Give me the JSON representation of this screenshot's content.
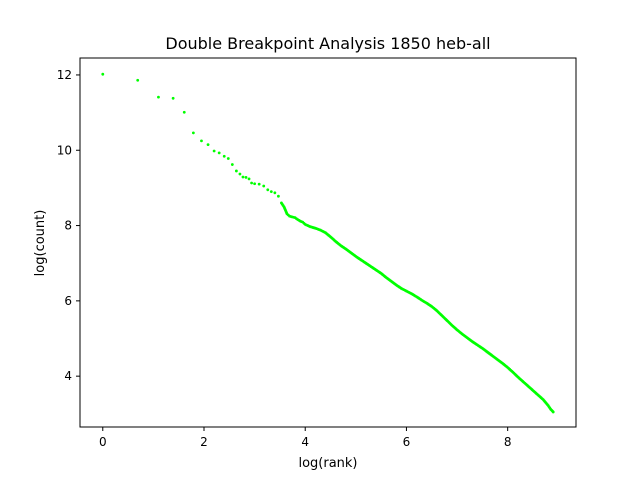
{
  "chart_data": {
    "type": "scatter",
    "title": "Double Breakpoint Analysis 1850 heb-all",
    "xlabel": "log(rank)",
    "ylabel": "log(count)",
    "xlim": [
      -0.45,
      9.35
    ],
    "ylim": [
      2.65,
      12.45
    ],
    "xticks": [
      0,
      2,
      4,
      6,
      8
    ],
    "yticks": [
      4,
      6,
      8,
      10,
      12
    ],
    "grid": false,
    "legend": "none",
    "marker_color": "#00ff00",
    "series": [
      {
        "name": "",
        "points": [
          [
            0.0,
            12.02
          ],
          [
            0.69,
            11.86
          ],
          [
            1.1,
            11.41
          ],
          [
            1.39,
            11.38
          ],
          [
            1.61,
            11.01
          ],
          [
            1.79,
            10.46
          ],
          [
            1.95,
            10.25
          ],
          [
            2.08,
            10.15
          ],
          [
            2.2,
            9.98
          ],
          [
            2.3,
            9.93
          ],
          [
            2.4,
            9.84
          ],
          [
            2.48,
            9.78
          ],
          [
            2.56,
            9.62
          ],
          [
            2.64,
            9.45
          ],
          [
            2.71,
            9.37
          ],
          [
            2.77,
            9.29
          ],
          [
            2.83,
            9.28
          ],
          [
            2.89,
            9.24
          ],
          [
            2.94,
            9.13
          ],
          [
            3.0,
            9.11
          ],
          [
            3.09,
            9.1
          ],
          [
            3.18,
            9.05
          ],
          [
            3.26,
            8.95
          ],
          [
            3.33,
            8.9
          ],
          [
            3.4,
            8.87
          ],
          [
            3.47,
            8.78
          ],
          [
            3.53,
            8.6
          ],
          [
            3.58,
            8.5
          ],
          [
            3.64,
            8.31
          ],
          [
            3.69,
            8.25
          ],
          [
            3.74,
            8.23
          ],
          [
            3.8,
            8.21
          ],
          [
            3.85,
            8.16
          ],
          [
            3.9,
            8.12
          ],
          [
            3.95,
            8.09
          ],
          [
            4.0,
            8.03
          ],
          [
            4.1,
            7.97
          ],
          [
            4.2,
            7.93
          ],
          [
            4.3,
            7.88
          ],
          [
            4.4,
            7.81
          ],
          [
            4.5,
            7.7
          ],
          [
            4.6,
            7.58
          ],
          [
            4.7,
            7.47
          ],
          [
            4.8,
            7.38
          ],
          [
            4.9,
            7.28
          ],
          [
            5.0,
            7.18
          ],
          [
            5.1,
            7.09
          ],
          [
            5.2,
            7.0
          ],
          [
            5.3,
            6.91
          ],
          [
            5.4,
            6.82
          ],
          [
            5.5,
            6.73
          ],
          [
            5.6,
            6.62
          ],
          [
            5.7,
            6.52
          ],
          [
            5.8,
            6.42
          ],
          [
            5.9,
            6.33
          ],
          [
            6.0,
            6.26
          ],
          [
            6.1,
            6.19
          ],
          [
            6.2,
            6.11
          ],
          [
            6.3,
            6.02
          ],
          [
            6.4,
            5.94
          ],
          [
            6.5,
            5.85
          ],
          [
            6.6,
            5.74
          ],
          [
            6.7,
            5.61
          ],
          [
            6.8,
            5.48
          ],
          [
            6.9,
            5.35
          ],
          [
            7.0,
            5.23
          ],
          [
            7.1,
            5.12
          ],
          [
            7.2,
            5.02
          ],
          [
            7.3,
            4.92
          ],
          [
            7.4,
            4.83
          ],
          [
            7.5,
            4.74
          ],
          [
            7.6,
            4.64
          ],
          [
            7.7,
            4.54
          ],
          [
            7.8,
            4.44
          ],
          [
            7.9,
            4.34
          ],
          [
            8.0,
            4.23
          ],
          [
            8.1,
            4.11
          ],
          [
            8.2,
            3.98
          ],
          [
            8.3,
            3.86
          ],
          [
            8.4,
            3.74
          ],
          [
            8.5,
            3.62
          ],
          [
            8.6,
            3.5
          ],
          [
            8.7,
            3.38
          ],
          [
            8.8,
            3.22
          ],
          [
            8.85,
            3.12
          ],
          [
            8.9,
            3.05
          ]
        ]
      }
    ]
  }
}
